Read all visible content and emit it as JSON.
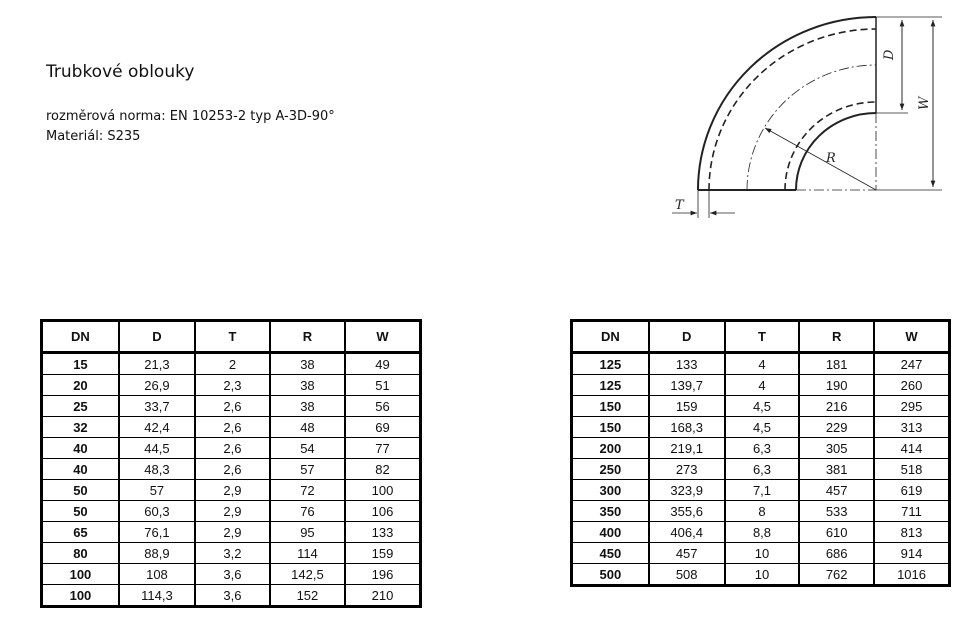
{
  "title": "Trubkové oblouky",
  "norm": "rozměrová norma: EN 10253-2 typ A-3D-90°",
  "material": "Materiál: S235",
  "drawing": {
    "labels": {
      "D": "D",
      "W": "W",
      "R": "R",
      "T": "T"
    }
  },
  "columns": [
    "DN",
    "D",
    "T",
    "R",
    "W"
  ],
  "table_left": [
    [
      "15",
      "21,3",
      "2",
      "38",
      "49"
    ],
    [
      "20",
      "26,9",
      "2,3",
      "38",
      "51"
    ],
    [
      "25",
      "33,7",
      "2,6",
      "38",
      "56"
    ],
    [
      "32",
      "42,4",
      "2,6",
      "48",
      "69"
    ],
    [
      "40",
      "44,5",
      "2,6",
      "54",
      "77"
    ],
    [
      "40",
      "48,3",
      "2,6",
      "57",
      "82"
    ],
    [
      "50",
      "57",
      "2,9",
      "72",
      "100"
    ],
    [
      "50",
      "60,3",
      "2,9",
      "76",
      "106"
    ],
    [
      "65",
      "76,1",
      "2,9",
      "95",
      "133"
    ],
    [
      "80",
      "88,9",
      "3,2",
      "114",
      "159"
    ],
    [
      "100",
      "108",
      "3,6",
      "142,5",
      "196"
    ],
    [
      "100",
      "114,3",
      "3,6",
      "152",
      "210"
    ]
  ],
  "table_right": [
    [
      "125",
      "133",
      "4",
      "181",
      "247"
    ],
    [
      "125",
      "139,7",
      "4",
      "190",
      "260"
    ],
    [
      "150",
      "159",
      "4,5",
      "216",
      "295"
    ],
    [
      "150",
      "168,3",
      "4,5",
      "229",
      "313"
    ],
    [
      "200",
      "219,1",
      "6,3",
      "305",
      "414"
    ],
    [
      "250",
      "273",
      "6,3",
      "381",
      "518"
    ],
    [
      "300",
      "323,9",
      "7,1",
      "457",
      "619"
    ],
    [
      "350",
      "355,6",
      "8",
      "533",
      "711"
    ],
    [
      "400",
      "406,4",
      "8,8",
      "610",
      "813"
    ],
    [
      "450",
      "457",
      "10",
      "686",
      "914"
    ],
    [
      "500",
      "508",
      "10",
      "762",
      "1016"
    ]
  ]
}
